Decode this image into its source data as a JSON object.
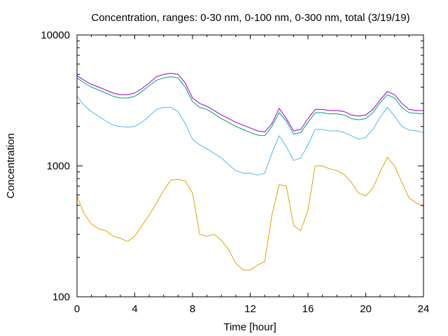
{
  "chart_data": {
    "type": "line",
    "title": "Concentration, ranges: 0-30 nm, 0-100 nm, 0-300 nm, total (3/19/19)",
    "xlabel": "Time [hour]",
    "ylabel": "Concentration",
    "xlim": [
      0,
      24
    ],
    "ylim": [
      100,
      10000
    ],
    "yscale": "log",
    "grid": false,
    "legend": "none",
    "xticks": [
      "0",
      "4",
      "8",
      "12",
      "16",
      "20",
      "24"
    ],
    "yticks": [
      "100",
      "1000",
      "10000"
    ],
    "x": [
      0,
      0.5,
      1,
      1.5,
      2,
      2.5,
      3,
      3.5,
      4,
      4.5,
      5,
      5.5,
      6,
      6.5,
      7,
      7.5,
      8,
      8.5,
      9,
      9.5,
      10,
      10.5,
      11,
      11.5,
      12,
      12.5,
      13,
      13.5,
      14,
      14.5,
      15,
      15.5,
      16,
      16.5,
      17,
      17.5,
      18,
      18.5,
      19,
      19.5,
      20,
      20.5,
      21,
      21.5,
      22,
      22.5,
      23,
      23.5,
      24
    ],
    "series": [
      {
        "color": "#e6a000",
        "values": [
          590,
          430,
          360,
          330,
          320,
          290,
          280,
          265,
          290,
          350,
          420,
          520,
          650,
          780,
          790,
          770,
          620,
          300,
          290,
          300,
          270,
          230,
          180,
          160,
          160,
          175,
          185,
          420,
          720,
          700,
          350,
          320,
          460,
          1000,
          1000,
          950,
          920,
          860,
          750,
          620,
          590,
          680,
          900,
          1160,
          1000,
          750,
          570,
          520,
          490
        ]
      },
      {
        "color": "#56b4e9",
        "values": [
          3400,
          2900,
          2600,
          2400,
          2200,
          2050,
          2000,
          1980,
          2000,
          2150,
          2400,
          2700,
          2800,
          2800,
          2600,
          2100,
          1600,
          1450,
          1350,
          1250,
          1150,
          1020,
          920,
          880,
          880,
          850,
          880,
          1250,
          1700,
          1400,
          1100,
          1150,
          1450,
          1900,
          1900,
          1850,
          1850,
          1800,
          1700,
          1600,
          1650,
          1900,
          2350,
          2800,
          2400,
          2000,
          1880,
          1850,
          1800
        ]
      },
      {
        "color": "#009e73",
        "values": [
          4700,
          4300,
          4000,
          3800,
          3600,
          3400,
          3300,
          3300,
          3400,
          3700,
          4100,
          4500,
          4700,
          4800,
          4700,
          4000,
          3100,
          2800,
          2700,
          2500,
          2300,
          2150,
          2000,
          1900,
          1800,
          1720,
          1700,
          2000,
          2550,
          2200,
          1750,
          1800,
          2150,
          2550,
          2550,
          2500,
          2500,
          2450,
          2300,
          2250,
          2300,
          2550,
          3050,
          3500,
          3300,
          2800,
          2550,
          2520,
          2500
        ]
      },
      {
        "color": "#9400d3",
        "values": [
          4900,
          4500,
          4200,
          4000,
          3800,
          3600,
          3500,
          3500,
          3600,
          3900,
          4300,
          4800,
          5000,
          5100,
          5000,
          4300,
          3300,
          3000,
          2850,
          2650,
          2450,
          2300,
          2150,
          2050,
          1950,
          1850,
          1820,
          2100,
          2750,
          2300,
          1850,
          1900,
          2300,
          2700,
          2700,
          2650,
          2650,
          2600,
          2450,
          2400,
          2450,
          2700,
          3200,
          3700,
          3500,
          3000,
          2700,
          2650,
          2650
        ]
      }
    ]
  }
}
